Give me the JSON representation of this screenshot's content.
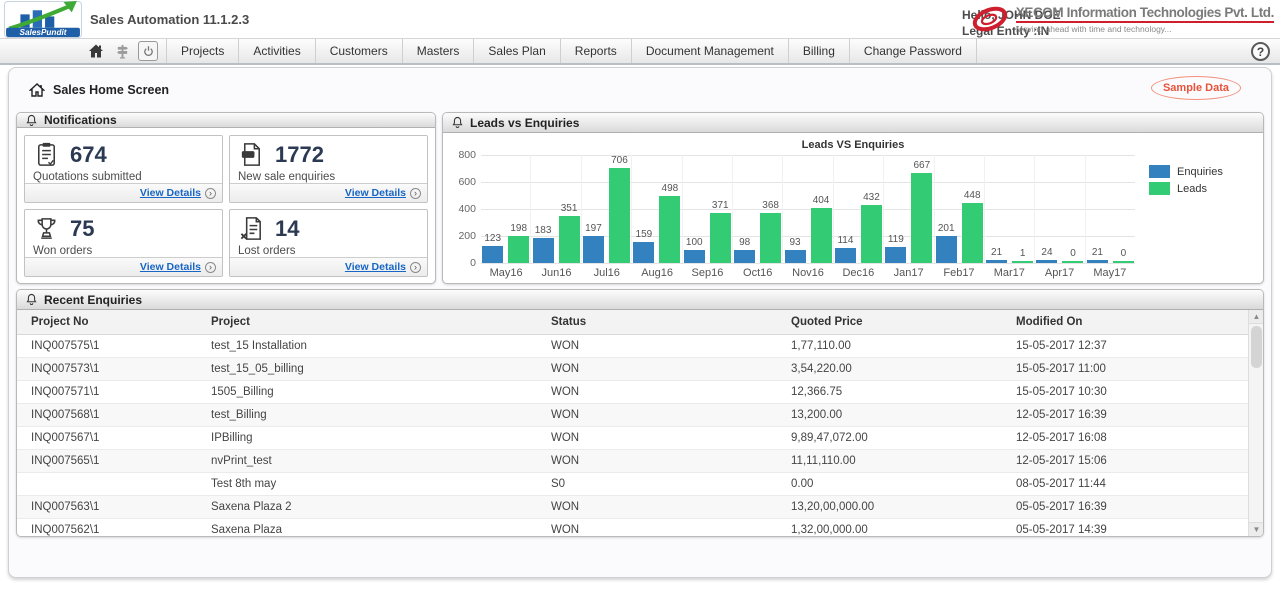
{
  "header": {
    "logo_text": "SalesPundit",
    "app_title": "Sales Automation 11.1.2.3",
    "greeting": "Hello, JOHN DOE",
    "legal_entity": "Legal Entity :IN",
    "company_name": "XECOM Information Technologies Pvt. Ltd.",
    "company_tagline": "Moving ahead with time and technology..."
  },
  "nav": {
    "tabs": [
      "Projects",
      "Activities",
      "Customers",
      "Masters",
      "Sales Plan",
      "Reports",
      "Document Management",
      "Billing",
      "Change Password"
    ],
    "help_label": "?"
  },
  "page": {
    "title": "Sales Home Screen",
    "badge": "Sample Data"
  },
  "notifications": {
    "title": "Notifications",
    "view_details_label": "View Details",
    "cards": [
      {
        "icon": "quotations-icon",
        "value": "674",
        "label": "Quotations submitted"
      },
      {
        "icon": "new-enquiries-icon",
        "value": "1772",
        "label": "New sale enquiries"
      },
      {
        "icon": "won-orders-icon",
        "value": "75",
        "label": "Won orders"
      },
      {
        "icon": "lost-orders-icon",
        "value": "14",
        "label": "Lost orders"
      }
    ]
  },
  "leads_panel": {
    "title": "Leads vs Enquiries"
  },
  "chart_data": {
    "type": "bar",
    "title": "Leads VS Enquiries",
    "categories": [
      "May16",
      "Jun16",
      "Jul16",
      "Aug16",
      "Sep16",
      "Oct16",
      "Nov16",
      "Dec16",
      "Jan17",
      "Feb17",
      "Mar17",
      "Apr17",
      "May17"
    ],
    "series": [
      {
        "name": "Enquiries",
        "color": "#3381be",
        "values": [
          123,
          183,
          197,
          159,
          100,
          98,
          93,
          114,
          119,
          201,
          21,
          24,
          21
        ]
      },
      {
        "name": "Leads",
        "color": "#33cb74",
        "values": [
          198,
          351,
          706,
          498,
          371,
          368,
          404,
          432,
          667,
          448,
          1,
          0,
          0
        ]
      }
    ],
    "ylim": [
      0,
      800
    ],
    "yticks": [
      0,
      200,
      400,
      600,
      800
    ],
    "grid": true,
    "legend_position": "right"
  },
  "recent_enquiries": {
    "title": "Recent Enquiries",
    "columns": [
      "Project No",
      "Project",
      "Status",
      "Quoted Price",
      "Modified On"
    ],
    "rows": [
      [
        "INQ007575\\1",
        "test_15 Installation",
        "WON",
        "1,77,110.00",
        "15-05-2017 12:37"
      ],
      [
        "INQ007573\\1",
        "test_15_05_billing",
        "WON",
        "3,54,220.00",
        "15-05-2017 11:00"
      ],
      [
        "INQ007571\\1",
        "1505_Billing",
        "WON",
        "12,366.75",
        "15-05-2017 10:30"
      ],
      [
        "INQ007568\\1",
        "test_Billing",
        "WON",
        "13,200.00",
        "12-05-2017 16:39"
      ],
      [
        "INQ007567\\1",
        "IPBilling",
        "WON",
        "9,89,47,072.00",
        "12-05-2017 16:08"
      ],
      [
        "INQ007565\\1",
        "nvPrint_test",
        "WON",
        "11,11,110.00",
        "12-05-2017 15:06"
      ],
      [
        "",
        "Test 8th may",
        "S0",
        "0.00",
        "08-05-2017 11:44"
      ],
      [
        "INQ007563\\1",
        "Saxena Plaza 2",
        "WON",
        "13,20,00,000.00",
        "05-05-2017 16:39"
      ],
      [
        "INQ007562\\1",
        "Saxena Plaza",
        "WON",
        "1,32,00,000.00",
        "05-05-2017 14:39"
      ]
    ]
  }
}
